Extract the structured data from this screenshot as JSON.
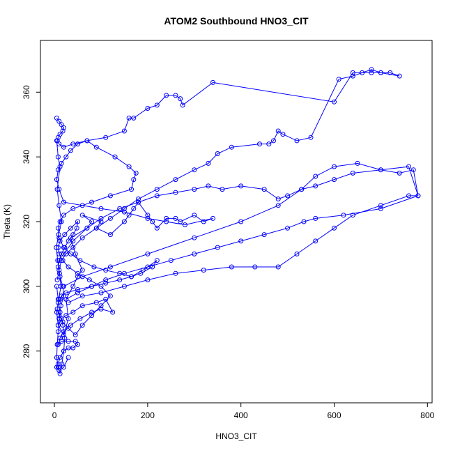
{
  "chart_data": {
    "type": "line",
    "title": "ATOM2 Southbound HNO3_CIT",
    "xlabel": "HNO3_CIT",
    "ylabel": "Theta (K)",
    "xlim": [
      -30,
      810
    ],
    "ylim": [
      264,
      376
    ],
    "x_ticks": [
      0,
      200,
      400,
      600,
      800
    ],
    "y_ticks": [
      280,
      300,
      320,
      340,
      360
    ],
    "grid": false,
    "markers": "open-circle",
    "line_color": "#0000ff",
    "series": [
      {
        "x": [
          5,
          8,
          12,
          6,
          10,
          15,
          9,
          4,
          7,
          11,
          14,
          9,
          5,
          8,
          20,
          30,
          25,
          40,
          50,
          60,
          45,
          35,
          70,
          80,
          60,
          100,
          90,
          120,
          150,
          160,
          170,
          180,
          200,
          210,
          220,
          240,
          260,
          270,
          300,
          320,
          340,
          280,
          240,
          200,
          150,
          100,
          60,
          20,
          10,
          5,
          8,
          15,
          25,
          35,
          50,
          70,
          90,
          130,
          160,
          175,
          170,
          165,
          120,
          80,
          40,
          20,
          12,
          8,
          10,
          20,
          35,
          55,
          85,
          110,
          140,
          165,
          185,
          210,
          220,
          190,
          165,
          140,
          110,
          80,
          50,
          25,
          15,
          12,
          8,
          6,
          10,
          18,
          30,
          45,
          60,
          80,
          100,
          120,
          100,
          75,
          50,
          30,
          18,
          10,
          8,
          12,
          22,
          35,
          50,
          48,
          40,
          30,
          22,
          15,
          10,
          8,
          12,
          18,
          20,
          14,
          10,
          8,
          6,
          5,
          8,
          12,
          16,
          20,
          22,
          18,
          12,
          8,
          5
        ],
        "y": [
          345,
          340,
          337,
          330,
          325,
          320,
          316,
          312,
          308,
          304,
          300,
          296,
          292,
          288,
          285,
          290,
          296,
          300,
          303,
          305,
          310,
          315,
          318,
          320,
          322,
          320,
          318,
          316,
          320,
          322,
          324,
          326,
          322,
          320,
          318,
          321,
          321,
          320,
          322,
          320,
          321,
          319,
          320,
          321,
          323,
          324,
          325,
          326,
          330,
          333,
          336,
          338,
          340,
          342,
          344,
          345,
          343,
          340,
          337,
          335,
          333,
          330,
          328,
          326,
          324,
          322,
          320,
          318,
          315,
          312,
          310,
          308,
          306,
          305,
          304,
          303,
          304,
          306,
          308,
          305,
          303,
          302,
          301,
          300,
          299,
          298,
          297,
          296,
          295,
          293,
          291,
          289,
          287,
          285,
          288,
          291,
          294,
          297,
          300,
          302,
          304,
          306,
          308,
          310,
          312,
          314,
          316,
          318,
          320,
          318,
          316,
          314,
          312,
          310,
          308,
          306,
          303,
          300,
          297,
          294,
          290,
          286,
          282,
          278,
          275,
          273,
          276,
          280,
          284,
          288,
          292,
          296,
          300
        ]
      },
      {
        "x": [
          5,
          10,
          15,
          20,
          18,
          12,
          8,
          6,
          10,
          20,
          40,
          70,
          110,
          150,
          160,
          170,
          200,
          220,
          240,
          260,
          270,
          275,
          340,
          600,
          640,
          680,
          700,
          720,
          740,
          700,
          680,
          660,
          640,
          610,
          550,
          520,
          490,
          480,
          470,
          460,
          440,
          380,
          350,
          330,
          300,
          260,
          220,
          180,
          150,
          120,
          90,
          60,
          40,
          25,
          15,
          10,
          6
        ],
        "y": [
          352,
          351,
          350,
          349,
          348,
          347,
          346,
          345,
          344,
          343,
          344,
          345,
          346,
          348,
          352,
          352,
          355,
          356,
          359,
          359,
          358,
          356,
          363,
          357,
          366,
          366,
          366,
          366,
          365,
          366,
          367,
          366,
          365,
          364,
          346,
          345,
          347,
          348,
          345,
          344,
          344,
          343,
          341,
          338,
          336,
          333,
          330,
          327,
          324,
          321,
          318,
          315,
          312,
          310,
          308,
          305,
          302
        ]
      },
      {
        "x": [
          20,
          60,
          120,
          200,
          300,
          400,
          480,
          530,
          560,
          600,
          650,
          700,
          740,
          770,
          780,
          760,
          700,
          640,
          600,
          560,
          530,
          500,
          480,
          450,
          400,
          360,
          330,
          300,
          260,
          220,
          180,
          140,
          100,
          70,
          40,
          20
        ],
        "y": [
          300,
          303,
          306,
          310,
          315,
          320,
          325,
          330,
          334,
          337,
          338,
          336,
          335,
          336,
          328,
          337,
          336,
          335,
          333,
          331,
          330,
          328,
          327,
          330,
          331,
          330,
          331,
          330,
          329,
          328,
          326,
          324,
          321,
          318,
          314,
          310
        ]
      },
      {
        "x": [
          30,
          60,
          100,
          150,
          200,
          260,
          320,
          380,
          430,
          480,
          520,
          560,
          600,
          640,
          700,
          760,
          780,
          700,
          620,
          560,
          535,
          500,
          450,
          400,
          350,
          300,
          250,
          200,
          150,
          110,
          80,
          50,
          25
        ],
        "y": [
          295,
          297,
          298,
          300,
          302,
          304,
          305,
          306,
          306,
          306,
          310,
          314,
          318,
          322,
          325,
          328,
          328,
          324,
          322,
          321,
          320,
          318,
          316,
          314,
          312,
          310,
          308,
          306,
          304,
          302,
          300,
          298,
          296
        ]
      },
      {
        "x": [
          8,
          15,
          25,
          40,
          60,
          90,
          110,
          125,
          100,
          80,
          55,
          35,
          20,
          12,
          8,
          15,
          30,
          45,
          50,
          40,
          30,
          20,
          12,
          8,
          5,
          10,
          20,
          30
        ],
        "y": [
          288,
          290,
          291,
          292,
          294,
          295,
          296,
          292,
          293,
          292,
          290,
          288,
          286,
          284,
          282,
          283,
          283,
          283,
          282,
          281,
          281,
          280,
          278,
          276,
          275,
          274,
          275,
          278
        ]
      }
    ]
  }
}
